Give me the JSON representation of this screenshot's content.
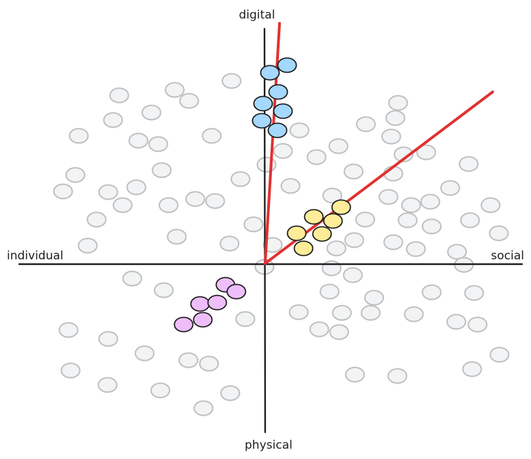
{
  "labels": {
    "top": "digital",
    "bottom": "physical",
    "left": "individual",
    "right": "social"
  },
  "colors": {
    "axis": "#1e1e1e",
    "ray": "#e03131",
    "neutral_fill": "#f1f3f5",
    "neutral_stroke": "#bfbfbf",
    "cluster_stroke": "#1e1e1e",
    "blue": "#a5d8ff",
    "yellow": "#ffec99",
    "purple": "#eebefa"
  },
  "clusters": [
    {
      "name": "blue-cluster",
      "color": "blue"
    },
    {
      "name": "yellow-cluster",
      "color": "yellow"
    },
    {
      "name": "purple-cluster",
      "color": "purple"
    }
  ]
}
